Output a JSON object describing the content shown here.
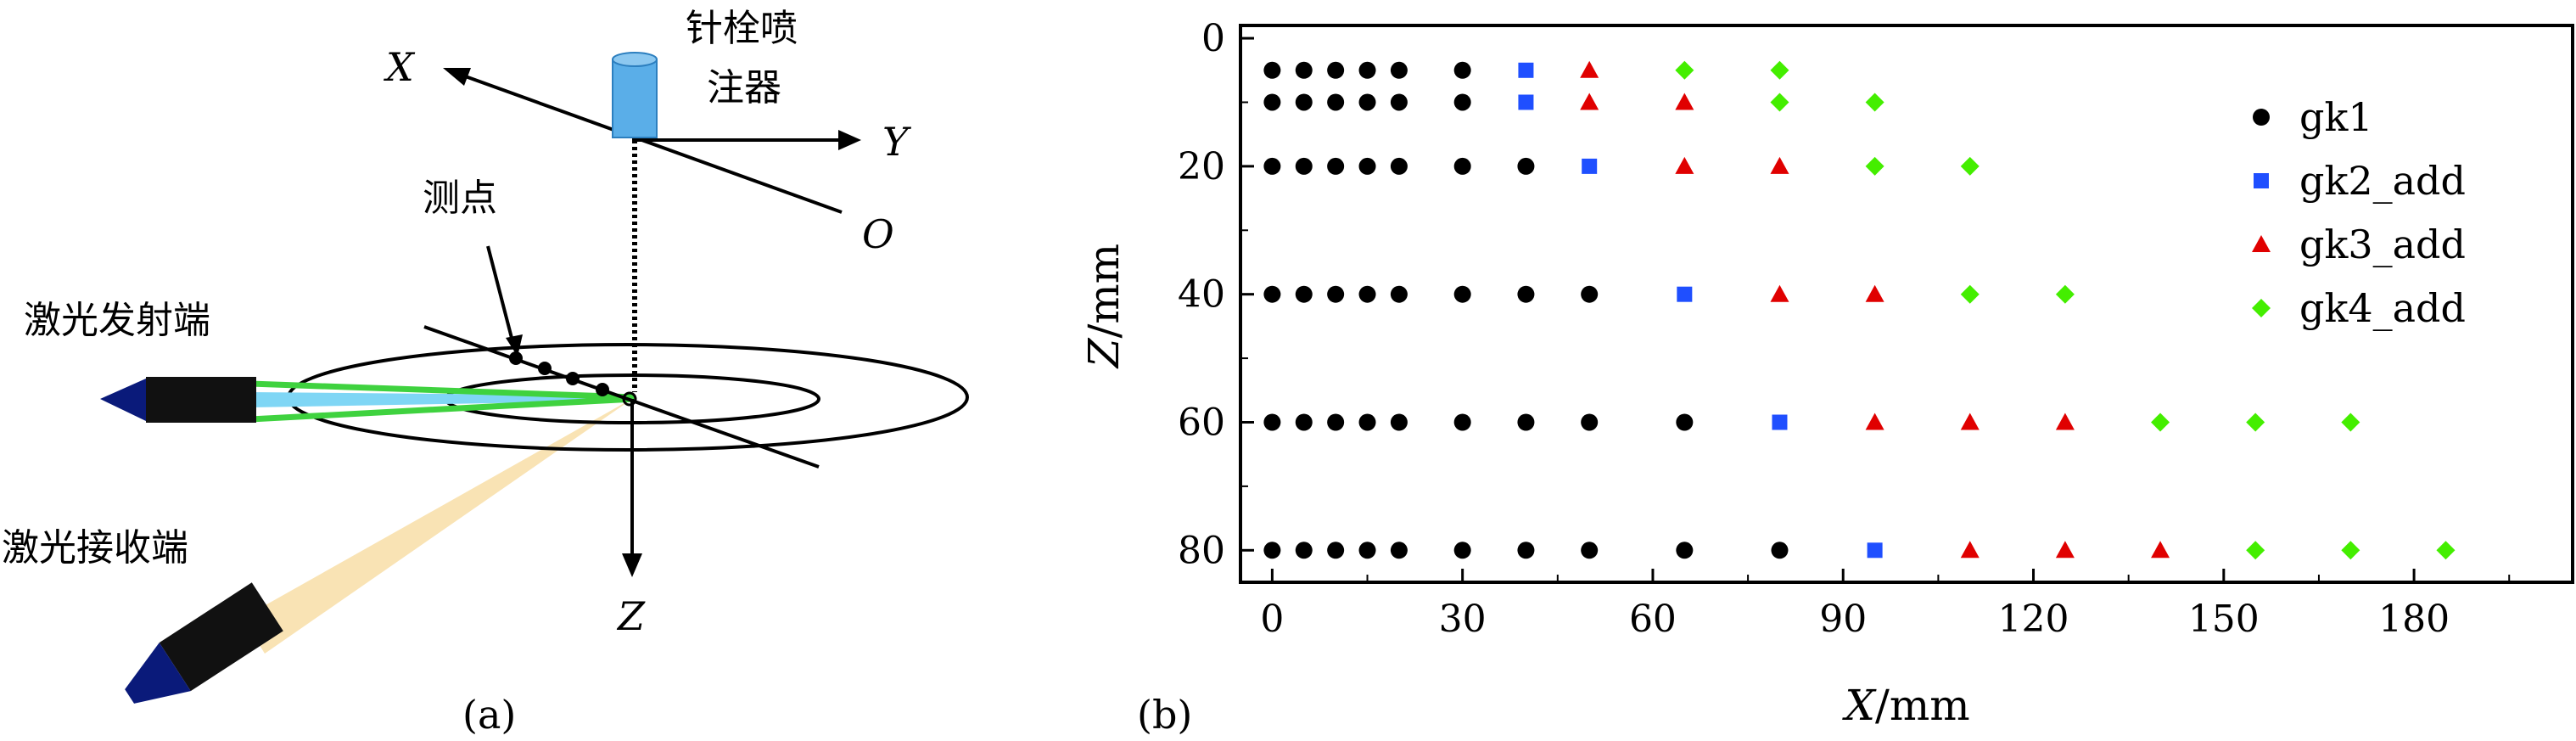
{
  "panel_a": {
    "caption": "(a)",
    "injector_label_line1": "针栓喷",
    "injector_label_line2": "注器",
    "measure_point_label": "测点",
    "laser_emitter_label": "激光发射端",
    "laser_receiver_label": "激光接收端",
    "axis_x": "X",
    "axis_y": "Y",
    "axis_z": "Z",
    "origin": "O",
    "colors": {
      "injector": "#5aaee8",
      "beam_green": "#3fd23f",
      "beam_cyan": "#7fd6f5",
      "beam_receiver": "#f9e3b4",
      "laser_tip": "#0a1a7a",
      "laser_body": "#111111"
    }
  },
  "panel_b": {
    "caption": "(b)"
  },
  "chart_data": {
    "type": "scatter",
    "title": "",
    "xlabel_italic": "X",
    "xlabel_unit": "/mm",
    "ylabel_italic": "Z",
    "ylabel_unit": "/mm",
    "xlim": [
      -5,
      205
    ],
    "ylim": [
      85,
      -2
    ],
    "y_inverted": true,
    "x_ticks": [
      0,
      30,
      60,
      90,
      120,
      150,
      180
    ],
    "y_ticks": [
      0,
      20,
      40,
      60,
      80
    ],
    "legend_position": "top-right",
    "series": [
      {
        "name": "gk1",
        "marker": "circle",
        "color": "#000000",
        "points": [
          [
            0,
            5
          ],
          [
            5,
            5
          ],
          [
            10,
            5
          ],
          [
            15,
            5
          ],
          [
            20,
            5
          ],
          [
            30,
            5
          ],
          [
            0,
            10
          ],
          [
            5,
            10
          ],
          [
            10,
            10
          ],
          [
            15,
            10
          ],
          [
            20,
            10
          ],
          [
            30,
            10
          ],
          [
            0,
            20
          ],
          [
            5,
            20
          ],
          [
            10,
            20
          ],
          [
            15,
            20
          ],
          [
            20,
            20
          ],
          [
            30,
            20
          ],
          [
            40,
            20
          ],
          [
            0,
            40
          ],
          [
            5,
            40
          ],
          [
            10,
            40
          ],
          [
            15,
            40
          ],
          [
            20,
            40
          ],
          [
            30,
            40
          ],
          [
            40,
            40
          ],
          [
            50,
            40
          ],
          [
            0,
            60
          ],
          [
            5,
            60
          ],
          [
            10,
            60
          ],
          [
            15,
            60
          ],
          [
            20,
            60
          ],
          [
            30,
            60
          ],
          [
            40,
            60
          ],
          [
            50,
            60
          ],
          [
            65,
            60
          ],
          [
            0,
            80
          ],
          [
            5,
            80
          ],
          [
            10,
            80
          ],
          [
            15,
            80
          ],
          [
            20,
            80
          ],
          [
            30,
            80
          ],
          [
            40,
            80
          ],
          [
            50,
            80
          ],
          [
            65,
            80
          ],
          [
            80,
            80
          ]
        ]
      },
      {
        "name": "gk2_add",
        "marker": "square",
        "color": "#1f4fff",
        "points": [
          [
            40,
            5
          ],
          [
            40,
            10
          ],
          [
            50,
            20
          ],
          [
            65,
            40
          ],
          [
            80,
            60
          ],
          [
            95,
            80
          ]
        ]
      },
      {
        "name": "gk3_add",
        "marker": "triangle",
        "color": "#e00000",
        "points": [
          [
            50,
            5
          ],
          [
            50,
            10
          ],
          [
            65,
            10
          ],
          [
            65,
            20
          ],
          [
            80,
            20
          ],
          [
            80,
            40
          ],
          [
            95,
            40
          ],
          [
            95,
            60
          ],
          [
            110,
            60
          ],
          [
            125,
            60
          ],
          [
            110,
            80
          ],
          [
            125,
            80
          ],
          [
            140,
            80
          ]
        ]
      },
      {
        "name": "gk4_add",
        "marker": "diamond",
        "color": "#44ee00",
        "points": [
          [
            65,
            5
          ],
          [
            80,
            5
          ],
          [
            80,
            10
          ],
          [
            95,
            10
          ],
          [
            95,
            20
          ],
          [
            110,
            20
          ],
          [
            110,
            40
          ],
          [
            125,
            40
          ],
          [
            140,
            60
          ],
          [
            155,
            60
          ],
          [
            170,
            60
          ],
          [
            155,
            80
          ],
          [
            170,
            80
          ],
          [
            185,
            80
          ]
        ]
      }
    ]
  }
}
